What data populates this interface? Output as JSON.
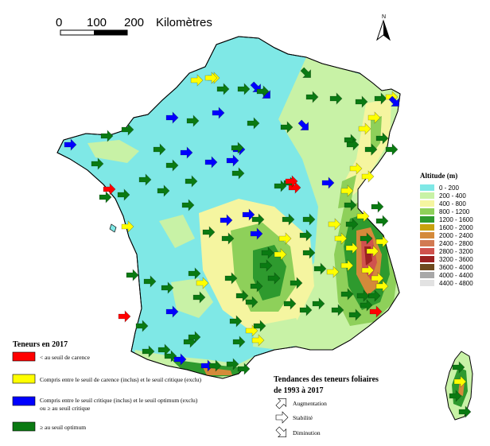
{
  "scale": {
    "ticks": [
      "0",
      "100",
      "200"
    ],
    "unit": "Kilomètres"
  },
  "north": {
    "label": "N"
  },
  "altitude_legend": {
    "title": "Altitude (m)",
    "classes": [
      {
        "label": "0 - 200",
        "color": "#7fe8e6"
      },
      {
        "label": "200 - 400",
        "color": "#c8f2a6"
      },
      {
        "label": "400 - 800",
        "color": "#f5f5a0"
      },
      {
        "label": "800 - 1200",
        "color": "#8ed05a"
      },
      {
        "label": "1200 - 1600",
        "color": "#2e9a2e"
      },
      {
        "label": "1600 - 2000",
        "color": "#c8a20e"
      },
      {
        "label": "2000 - 2400",
        "color": "#d48a3a"
      },
      {
        "label": "2400 - 2800",
        "color": "#d27a52"
      },
      {
        "label": "2800 - 3200",
        "color": "#d0524e"
      },
      {
        "label": "3200 - 3600",
        "color": "#9c2222"
      },
      {
        "label": "3600 - 4000",
        "color": "#6e4a1e"
      },
      {
        "label": "4000 - 4400",
        "color": "#a8a8a8"
      },
      {
        "label": "4400 - 4800",
        "color": "#e2e2e2"
      }
    ]
  },
  "contents_legend": {
    "title": "Teneurs en 2017",
    "items": [
      {
        "name": "carence",
        "label": "< au seuil de carence",
        "color": "#ff0000"
      },
      {
        "name": "carence-critique",
        "label": "Compris entre le seuil de carence (inclus) et le seuil critique (exclu)",
        "color": "#ffff00"
      },
      {
        "name": "critique-optimum-1",
        "label": "Compris entre le seuil critique (inclus) et le seuil optimum (exclu)",
        "label2": "ou ≥ au seuil critique",
        "color": "#0000ff"
      },
      {
        "name": "optimum",
        "label": "≥ au seuil optimum",
        "color": "#0a7a12"
      }
    ]
  },
  "trends_legend": {
    "title_line1": "Tendances des teneurs foliaires",
    "title_line2": "de 1993 à 2017",
    "items": [
      {
        "name": "augmentation",
        "label": "Augmentation"
      },
      {
        "name": "stabilite",
        "label": "Stabilité"
      },
      {
        "name": "diminution",
        "label": "Diminution"
      }
    ]
  },
  "colors": {
    "red": "#ff0000",
    "yellow": "#ffff00",
    "blue": "#0000ff",
    "green": "#0a7a12"
  }
}
